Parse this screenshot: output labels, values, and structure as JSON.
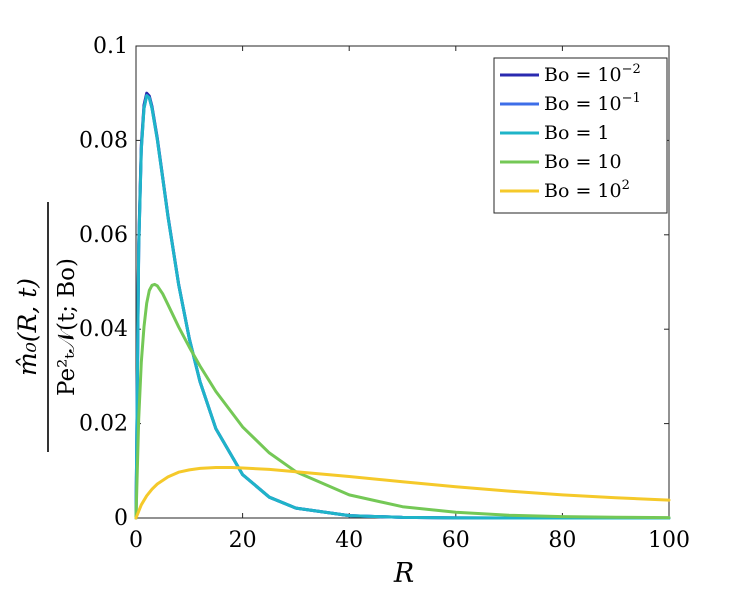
{
  "chart_data": {
    "type": "line",
    "xlabel": "R",
    "ylabel": {
      "numerator": "m̂₀(R, t)",
      "denominator": "Pe²ₜ𝒩(t; Bo)"
    },
    "xlim": [
      0,
      100
    ],
    "ylim": [
      0,
      0.1
    ],
    "xticks": [
      0,
      20,
      40,
      60,
      80,
      100
    ],
    "yticks": [
      0,
      0.02,
      0.04,
      0.06,
      0.08,
      0.1
    ],
    "xtick_labels": [
      "0",
      "20",
      "40",
      "60",
      "80",
      "100"
    ],
    "ytick_labels": [
      "0",
      "0.02",
      "0.04",
      "0.06",
      "0.08",
      "0.1"
    ],
    "grid": false,
    "legend_position": "top-right",
    "series": [
      {
        "name": "Bo = 10⁻²",
        "label_base": "Bo = 10",
        "label_exp": "−2",
        "color": "#2a2ab0",
        "x": [
          0,
          0.5,
          1,
          1.5,
          2,
          2.5,
          3,
          4,
          5,
          6,
          8,
          10,
          12,
          15,
          20,
          25,
          30,
          40,
          50,
          60,
          70,
          80,
          90,
          100
        ],
        "y": [
          0,
          0.058,
          0.079,
          0.0875,
          0.09,
          0.0894,
          0.0872,
          0.0805,
          0.0722,
          0.064,
          0.0496,
          0.038,
          0.0289,
          0.0189,
          0.0092,
          0.0044,
          0.0021,
          0.0005,
          0.00012,
          3e-05,
          1e-05,
          0,
          0,
          0
        ]
      },
      {
        "name": "Bo = 10⁻¹",
        "label_base": "Bo = 10",
        "label_exp": "−1",
        "color": "#3d6ee8",
        "x": [
          0,
          0.5,
          1,
          1.5,
          2,
          2.5,
          3,
          4,
          5,
          6,
          8,
          10,
          12,
          15,
          20,
          25,
          30,
          40,
          50,
          60,
          70,
          80,
          90,
          100
        ],
        "y": [
          0,
          0.057,
          0.078,
          0.0868,
          0.0895,
          0.089,
          0.0868,
          0.0802,
          0.072,
          0.0638,
          0.0495,
          0.038,
          0.0289,
          0.0189,
          0.0092,
          0.0044,
          0.0021,
          0.0005,
          0.00012,
          3e-05,
          1e-05,
          0,
          0,
          0
        ]
      },
      {
        "name": "Bo = 1",
        "label_base": "Bo = 1",
        "label_exp": "",
        "color": "#1fb4c8",
        "x": [
          0,
          0.5,
          1,
          1.5,
          2,
          2.5,
          3,
          4,
          5,
          6,
          8,
          10,
          12,
          15,
          20,
          25,
          30,
          40,
          50,
          60,
          70,
          80,
          90,
          100
        ],
        "y": [
          0,
          0.057,
          0.078,
          0.0868,
          0.0895,
          0.089,
          0.0868,
          0.0802,
          0.072,
          0.0638,
          0.0495,
          0.038,
          0.0289,
          0.0189,
          0.0092,
          0.0044,
          0.0021,
          0.0005,
          0.00012,
          3e-05,
          1e-05,
          0,
          0,
          0
        ]
      },
      {
        "name": "Bo = 10",
        "label_base": "Bo = 10",
        "label_exp": "",
        "color": "#74c856",
        "x": [
          0,
          0.5,
          1,
          1.5,
          2,
          2.5,
          3,
          3.5,
          4,
          5,
          6,
          8,
          10,
          12,
          15,
          20,
          25,
          30,
          40,
          50,
          60,
          70,
          80,
          90,
          100
        ],
        "y": [
          0,
          0.021,
          0.033,
          0.0405,
          0.0455,
          0.0482,
          0.0493,
          0.0495,
          0.0492,
          0.0475,
          0.0452,
          0.0405,
          0.0362,
          0.0322,
          0.0268,
          0.0193,
          0.0138,
          0.0098,
          0.0049,
          0.0024,
          0.0012,
          0.0006,
          0.0003,
          0.00015,
          8e-05
        ]
      },
      {
        "name": "Bo = 10²",
        "label_base": "Bo = 10",
        "label_exp": "2",
        "color": "#f5c92a",
        "x": [
          0,
          1,
          2,
          3,
          4,
          6,
          8,
          10,
          12,
          15,
          18,
          20,
          25,
          30,
          40,
          50,
          60,
          70,
          80,
          90,
          100
        ],
        "y": [
          0,
          0.0028,
          0.0047,
          0.0061,
          0.0072,
          0.0087,
          0.0097,
          0.0102,
          0.0105,
          0.0107,
          0.0107,
          0.0106,
          0.0103,
          0.0098,
          0.0088,
          0.0077,
          0.0066,
          0.0057,
          0.0049,
          0.0043,
          0.0038
        ]
      }
    ]
  }
}
